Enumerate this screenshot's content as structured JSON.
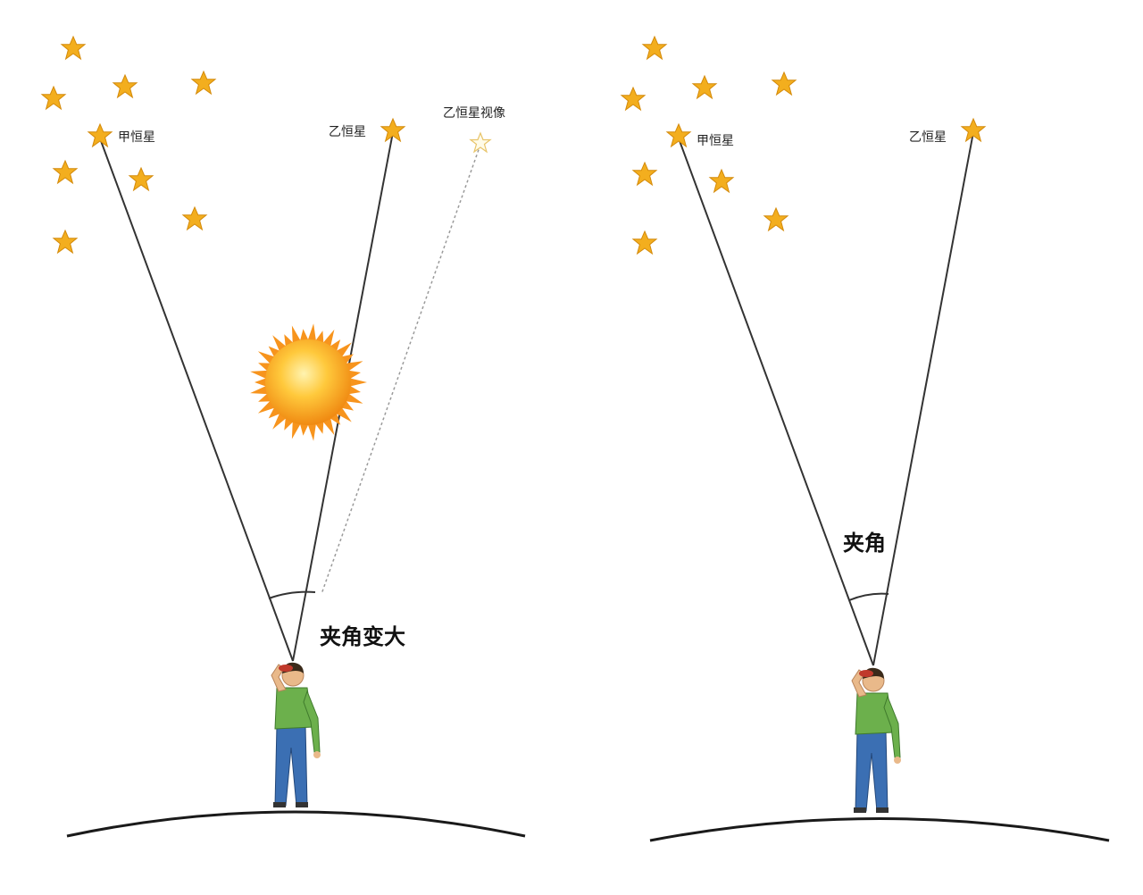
{
  "colors": {
    "star": "#f3ae1e",
    "star_stroke": "#d48a0a",
    "line": "#333333",
    "ghost_line": "#9a9a9a",
    "sun_core": "#ffd76a",
    "sun_outer": "#f7941d",
    "ground": "#1a1a1a",
    "shirt": "#6cb04c",
    "jeans": "#3b6fb3",
    "skin": "#e9b98a",
    "hair": "#3a2a1a"
  },
  "left": {
    "star_a_label": "甲恒星",
    "star_b_label": "乙恒星",
    "star_b_apparent_label": "乙恒星视像",
    "angle_label": "夹角变大"
  },
  "right": {
    "star_a_label": "甲恒星",
    "star_b_label": "乙恒星",
    "angle_label": "夹角"
  },
  "icons": {
    "star": "star-icon",
    "sun": "sun-icon",
    "observer": "observer-figure"
  }
}
